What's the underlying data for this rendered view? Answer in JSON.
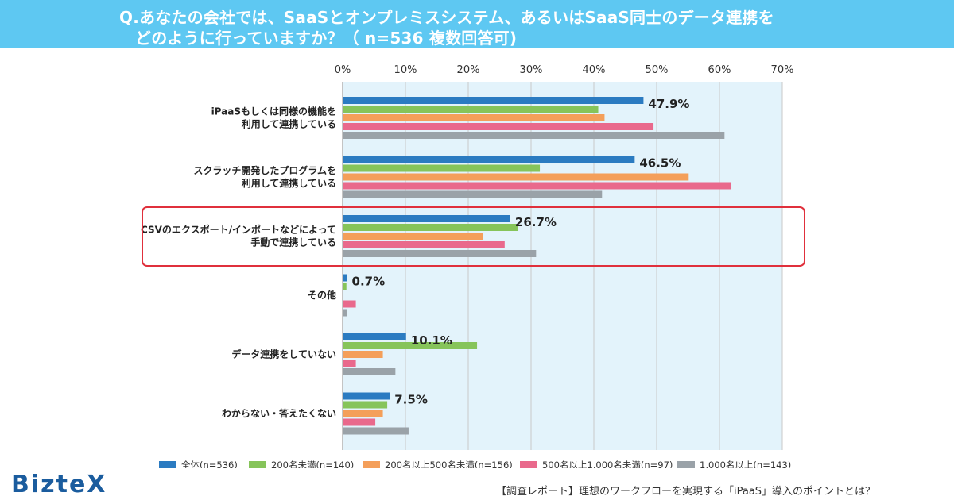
{
  "header": {
    "line1": "Q.あなたの会社では、SaaSとオンプレミスシステム、あるいはSaaS同士のデータ連携を",
    "line2": "どのように行っていますか？（ n=536 複数回答可)"
  },
  "brand": {
    "logo_text": "BizteX"
  },
  "footer": {
    "note": "【調査レポート】理想のワークフローを実現する「iPaaS」導入のポイントとは？"
  },
  "colors": {
    "series": [
      "#2b7bc1",
      "#86c45a",
      "#f49f5a",
      "#e9698c",
      "#9aa2a8"
    ],
    "plot_bg": "#e3f3fb",
    "highlight": "#e0303c",
    "header_bg": "#5ec8f2"
  },
  "chart_data": {
    "type": "bar",
    "orientation": "horizontal",
    "title": "Q.あなたの会社では、SaaSとオンプレミスシステム、あるいはSaaS同士のデータ連携をどのように行っていますか？（ n=536 複数回答可)",
    "xlim": [
      0,
      70
    ],
    "ticks": [
      0,
      10,
      20,
      30,
      40,
      50,
      60,
      70
    ],
    "tick_labels": [
      "0%",
      "10%",
      "20%",
      "30%",
      "40%",
      "50%",
      "60%",
      "70%"
    ],
    "grid": true,
    "legend_position": "bottom",
    "highlighted_category": 2,
    "categories": [
      [
        "iPaaSもしくは同様の機能を",
        "利用して連携している"
      ],
      [
        "スクラッチ開発したプログラムを",
        "利用して連携している"
      ],
      [
        "CSVのエクスポート/インポートなどによって",
        "手動で連携している"
      ],
      [
        "その他"
      ],
      [
        "データ連携をしていない"
      ],
      [
        "わからない・答えたくない"
      ]
    ],
    "series": [
      {
        "name": "全体(n=536)",
        "values": [
          47.9,
          46.5,
          26.7,
          0.7,
          10.1,
          7.5
        ]
      },
      {
        "name": "200名未満(n=140)",
        "values": [
          40.7,
          31.4,
          27.9,
          0.6,
          21.4,
          7.1
        ]
      },
      {
        "name": "200名以上500名未満(n=156)",
        "values": [
          41.7,
          55.1,
          22.4,
          0.0,
          6.4,
          6.4
        ]
      },
      {
        "name": "500名以上1,000名未満(n=97)",
        "values": [
          49.5,
          61.9,
          25.8,
          2.1,
          2.1,
          5.2
        ]
      },
      {
        "name": "1,000名以上(n=143)",
        "values": [
          60.8,
          41.3,
          30.8,
          0.7,
          8.4,
          10.5
        ]
      }
    ],
    "data_labels": [
      "47.9%",
      "46.5%",
      "26.7%",
      "0.7%",
      "10.1%",
      "7.5%"
    ]
  }
}
